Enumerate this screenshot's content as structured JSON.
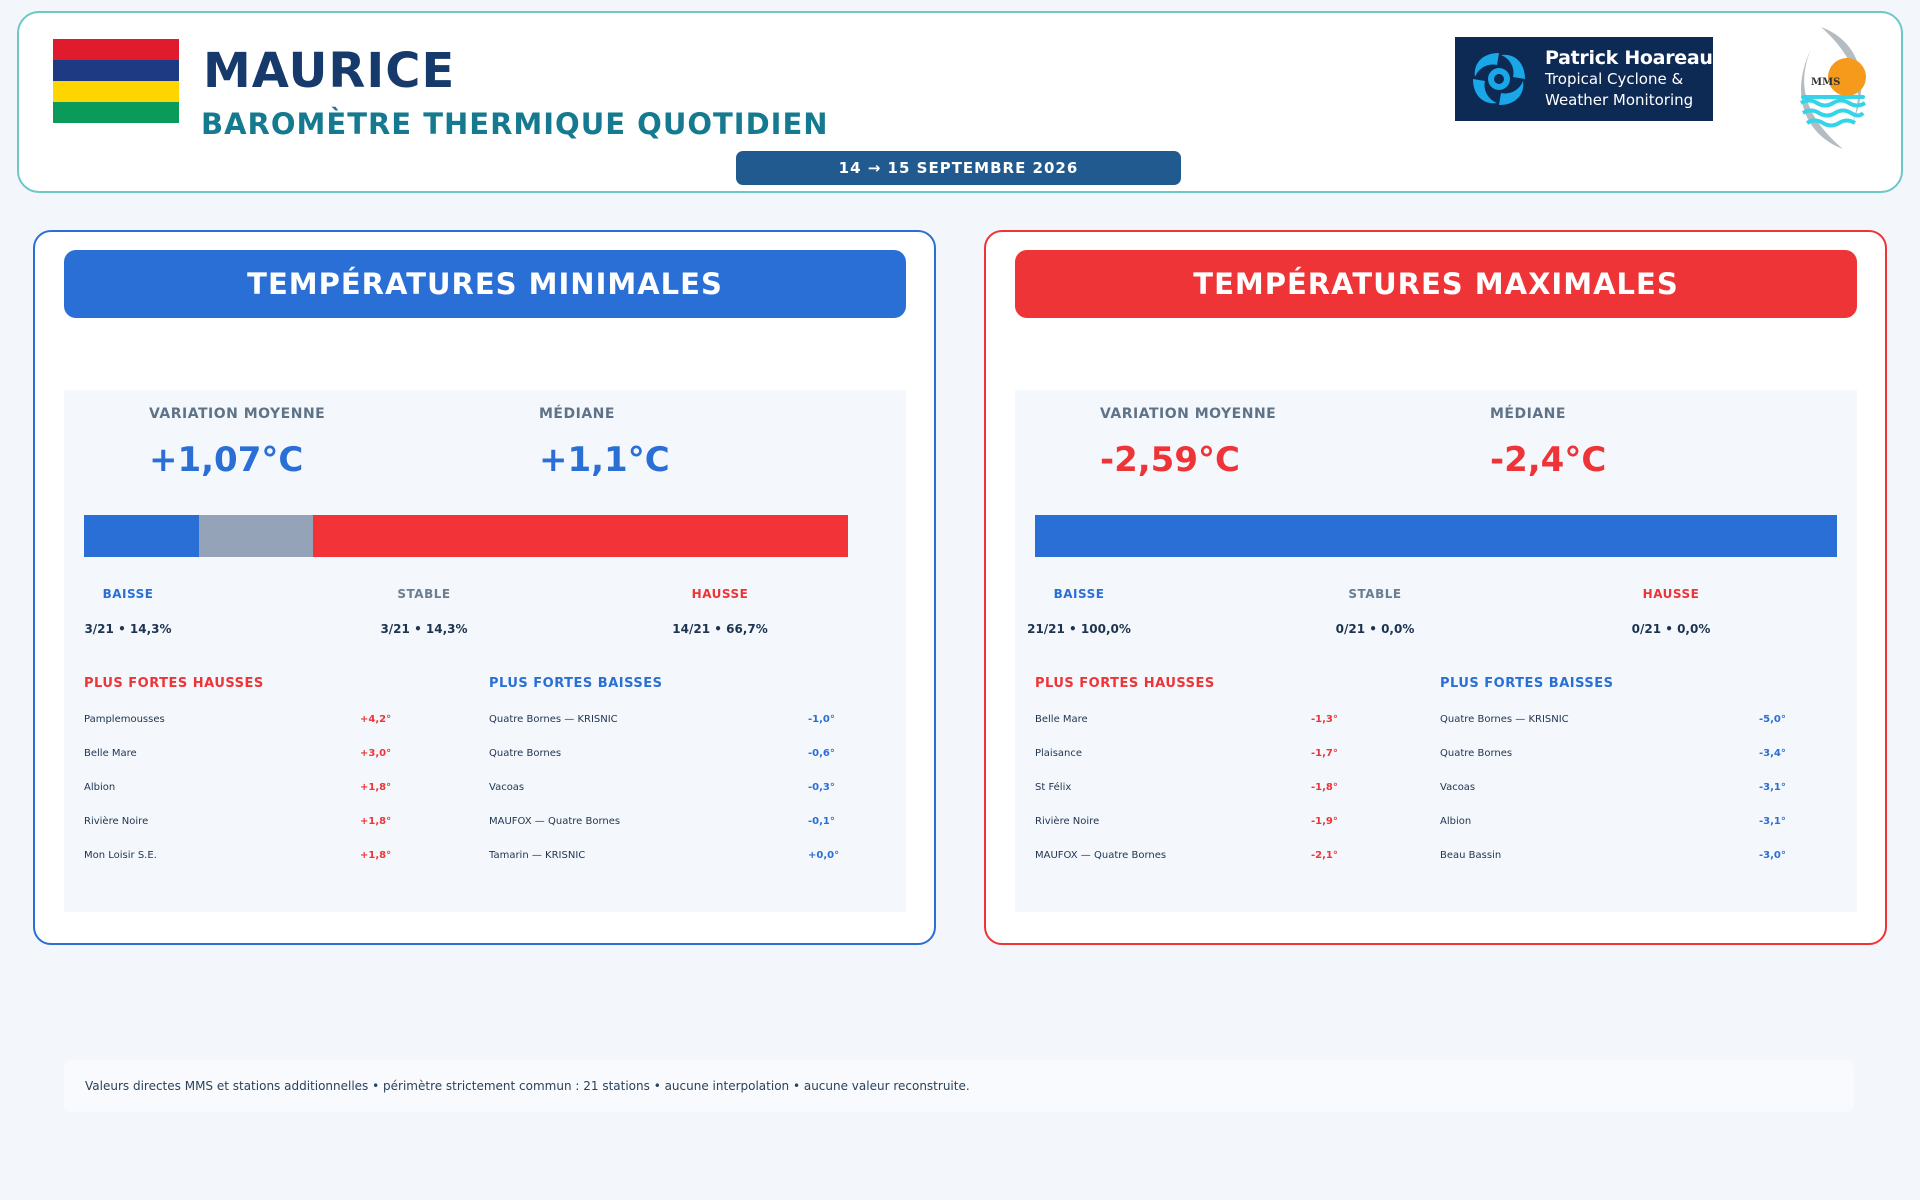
{
  "header": {
    "title": "MAURICE",
    "subtitle": "BAROMÈTRE THERMIQUE QUOTIDIEN",
    "date_range": "14 → 15 SEPTEMBRE 2026",
    "flag_colors": [
      "#e11b2e",
      "#1e3a82",
      "#ffd500",
      "#0a9a5a"
    ],
    "brand": {
      "name": "Patrick Hoareau",
      "line1": "Tropical Cyclone &",
      "line2": "Weather Monitoring"
    },
    "mms_logo_text": "MMS"
  },
  "colors": {
    "down": "#2a6fd6",
    "stable": "#94a3b8",
    "up": "#f23438"
  },
  "panels": {
    "min": {
      "title": "TEMPÉRATURES MINIMALES",
      "avg_label": "VARIATION MOYENNE",
      "avg_value": "+1,07°C",
      "median_label": "MÉDIANE",
      "median_value": "+1,1°C",
      "distribution": {
        "down": 3,
        "stable": 3,
        "up": 14,
        "total": 21
      },
      "down_label": "BAISSE",
      "stable_label": "STABLE",
      "up_label": "HAUSSE",
      "down_count": "3/21 • 14,3%",
      "stable_count": "3/21 • 14,3%",
      "up_count": "14/21 • 66,7%",
      "rises_title": "PLUS FORTES HAUSSES",
      "falls_title": "PLUS FORTES BAISSES",
      "rises": [
        {
          "name": "Pamplemousses",
          "value": "+4,2°"
        },
        {
          "name": "Belle Mare",
          "value": "+3,0°"
        },
        {
          "name": "Albion",
          "value": "+1,8°"
        },
        {
          "name": "Rivière Noire",
          "value": "+1,8°"
        },
        {
          "name": "Mon Loisir S.E.",
          "value": "+1,8°"
        }
      ],
      "falls": [
        {
          "name": "Quatre Bornes — KRISNIC",
          "value": "-1,0°"
        },
        {
          "name": "Quatre Bornes",
          "value": "-0,6°"
        },
        {
          "name": "Vacoas",
          "value": "-0,3°"
        },
        {
          "name": "MAUFOX — Quatre Bornes",
          "value": "-0,1°"
        },
        {
          "name": "Tamarin — KRISNIC",
          "value": "+0,0°"
        }
      ]
    },
    "max": {
      "title": "TEMPÉRATURES MAXIMALES",
      "avg_label": "VARIATION MOYENNE",
      "avg_value": "-2,59°C",
      "median_label": "MÉDIANE",
      "median_value": "-2,4°C",
      "distribution": {
        "down": 21,
        "stable": 0,
        "up": 0,
        "total": 21
      },
      "down_label": "BAISSE",
      "stable_label": "STABLE",
      "up_label": "HAUSSE",
      "down_count": "21/21 • 100,0%",
      "stable_count": "0/21 • 0,0%",
      "up_count": "0/21 • 0,0%",
      "rises_title": "PLUS FORTES HAUSSES",
      "falls_title": "PLUS FORTES BAISSES",
      "rises": [
        {
          "name": "Belle Mare",
          "value": "-1,3°"
        },
        {
          "name": "Plaisance",
          "value": "-1,7°"
        },
        {
          "name": "St Félix",
          "value": "-1,8°"
        },
        {
          "name": "Rivière Noire",
          "value": "-1,9°"
        },
        {
          "name": "MAUFOX — Quatre Bornes",
          "value": "-2,1°"
        }
      ],
      "falls": [
        {
          "name": "Quatre Bornes — KRISNIC",
          "value": "-5,0°"
        },
        {
          "name": "Quatre Bornes",
          "value": "-3,4°"
        },
        {
          "name": "Vacoas",
          "value": "-3,1°"
        },
        {
          "name": "Albion",
          "value": "-3,1°"
        },
        {
          "name": "Beau Bassin",
          "value": "-3,0°"
        }
      ]
    }
  },
  "footer": {
    "note": "Valeurs directes MMS et stations additionnelles • périmètre strictement commun : 21 stations • aucune interpolation • aucune valeur reconstruite."
  }
}
